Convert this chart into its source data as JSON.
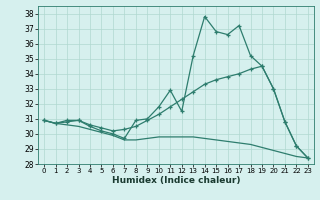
{
  "xlabel": "Humidex (Indice chaleur)",
  "background_color": "#d6f0ee",
  "line_color": "#2e7d6e",
  "grid_color": "#b0d8d0",
  "xlim": [
    -0.5,
    23.5
  ],
  "ylim": [
    28,
    38.5
  ],
  "yticks": [
    28,
    29,
    30,
    31,
    32,
    33,
    34,
    35,
    36,
    37,
    38
  ],
  "xticks": [
    0,
    1,
    2,
    3,
    4,
    5,
    6,
    7,
    8,
    9,
    10,
    11,
    12,
    13,
    14,
    15,
    16,
    17,
    18,
    19,
    20,
    21,
    22,
    23
  ],
  "series1_x": [
    0,
    1,
    2,
    3,
    4,
    5,
    6,
    7,
    8,
    9,
    10,
    11,
    12,
    13,
    14,
    15,
    16,
    17,
    18,
    19,
    20,
    21,
    22,
    23
  ],
  "series1_y": [
    30.9,
    30.7,
    30.8,
    30.9,
    30.5,
    30.2,
    30.0,
    29.7,
    30.9,
    31.0,
    31.8,
    32.9,
    31.5,
    35.2,
    37.8,
    36.8,
    36.6,
    37.2,
    35.2,
    34.5,
    33.0,
    30.8,
    29.2,
    28.4
  ],
  "series2_x": [
    0,
    1,
    2,
    3,
    4,
    5,
    6,
    7,
    8,
    9,
    10,
    11,
    12,
    13,
    14,
    15,
    16,
    17,
    18,
    19,
    20,
    21,
    22,
    23
  ],
  "series2_y": [
    30.9,
    30.7,
    30.9,
    30.9,
    30.6,
    30.4,
    30.2,
    30.3,
    30.5,
    30.9,
    31.3,
    31.8,
    32.3,
    32.8,
    33.3,
    33.6,
    33.8,
    34.0,
    34.3,
    34.5,
    33.0,
    30.8,
    29.2,
    28.4
  ],
  "series3_x": [
    0,
    1,
    2,
    3,
    4,
    5,
    6,
    7,
    8,
    9,
    10,
    11,
    12,
    13,
    14,
    15,
    16,
    17,
    18,
    19,
    20,
    21,
    22,
    23
  ],
  "series3_y": [
    30.9,
    30.7,
    30.6,
    30.5,
    30.3,
    30.1,
    29.9,
    29.6,
    29.6,
    29.7,
    29.8,
    29.8,
    29.8,
    29.8,
    29.7,
    29.6,
    29.5,
    29.4,
    29.3,
    29.1,
    28.9,
    28.7,
    28.5,
    28.4
  ]
}
